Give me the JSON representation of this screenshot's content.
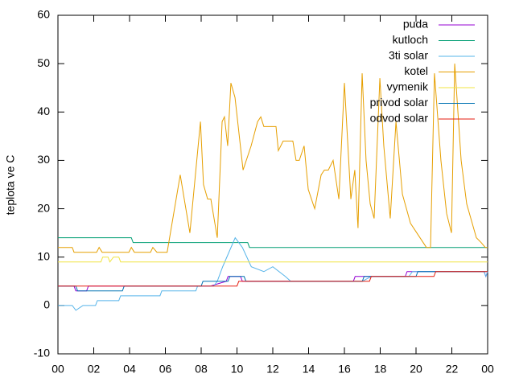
{
  "chart_data": {
    "type": "line",
    "ylabel": "teplota ve C",
    "xlim": [
      0,
      24
    ],
    "ylim": [
      -10,
      60
    ],
    "xticks": [
      {
        "value": 0,
        "label": "00"
      },
      {
        "value": 2,
        "label": "02"
      },
      {
        "value": 4,
        "label": "04"
      },
      {
        "value": 6,
        "label": "06"
      },
      {
        "value": 8,
        "label": "08"
      },
      10,
      12,
      14,
      16,
      18,
      20,
      22,
      {
        "value": 24,
        "label": "00"
      }
    ],
    "yticks": [
      -10,
      0,
      10,
      20,
      30,
      40,
      50,
      60
    ],
    "legend": "top-right",
    "series": [
      {
        "name": "puda",
        "color": "#9400d3",
        "x": [
          0,
          0.9,
          1.0,
          1.6,
          1.7,
          3.5,
          3.6,
          8.4,
          8.5,
          9.4,
          9.5,
          10.2,
          10.3,
          16.5,
          16.6,
          18.5,
          18.6,
          19.4,
          19.5,
          23.8,
          23.9,
          24
        ],
        "values": [
          4,
          4,
          3,
          3,
          4,
          4,
          4,
          4,
          4,
          5,
          6,
          6,
          5,
          5,
          6,
          6,
          6,
          6,
          7,
          7,
          6,
          7
        ]
      },
      {
        "name": "kutloch",
        "color": "#009e73",
        "x": [
          0,
          4.1,
          4.2,
          10.6,
          10.7,
          24
        ],
        "values": [
          14,
          14,
          13,
          13,
          12,
          12
        ]
      },
      {
        "name": "3ti solar",
        "color": "#56b4e9",
        "x": [
          0,
          0.8,
          1.0,
          1.4,
          2.1,
          2.2,
          3.4,
          3.5,
          5.7,
          5.8,
          7.7,
          7.8,
          8.7,
          8.9,
          9.2,
          9.9,
          10.3,
          10.8,
          11.5,
          12.0,
          12.7,
          13.0,
          17.0,
          17.5,
          19.6,
          19.8,
          23.8,
          23.9,
          24
        ],
        "values": [
          0,
          0,
          -1,
          0,
          0,
          1,
          1,
          2,
          2,
          3,
          3,
          4,
          4,
          5,
          8,
          14,
          12,
          8,
          7,
          8,
          6,
          5,
          5,
          6,
          6,
          7,
          7,
          6,
          7
        ]
      },
      {
        "name": "kotel",
        "color": "#e69f00",
        "x": [
          0,
          0.8,
          0.9,
          2.16,
          2.3,
          2.47,
          3.96,
          4.1,
          4.27,
          5.17,
          5.3,
          5.53,
          6.1,
          6.83,
          7.37,
          7.96,
          8.13,
          8.36,
          8.54,
          8.9,
          9.17,
          9.3,
          9.48,
          9.66,
          9.89,
          10.34,
          10.79,
          11.15,
          11.33,
          11.5,
          12.18,
          12.31,
          12.58,
          13.12,
          13.3,
          13.48,
          13.75,
          13.98,
          14.34,
          14.7,
          14.88,
          15.1,
          15.37,
          15.69,
          16.0,
          16.36,
          16.58,
          16.76,
          16.99,
          17.21,
          17.44,
          17.66,
          17.98,
          18.2,
          18.56,
          18.88,
          19.24,
          19.69,
          20.58,
          20.81,
          21.03,
          21.39,
          21.71,
          21.98,
          22.16,
          22.52,
          22.83,
          23.37,
          23.64,
          23.87,
          24
        ],
        "values": [
          12,
          12,
          11,
          11,
          12,
          11,
          11,
          12,
          11,
          11,
          12,
          11,
          11,
          27,
          15,
          38,
          25,
          22,
          22,
          14,
          38,
          39,
          33,
          46,
          43,
          28,
          33,
          38,
          39,
          37,
          37,
          32,
          34,
          34,
          30,
          30,
          33,
          24,
          20,
          27,
          28,
          28,
          30,
          22,
          46,
          22,
          28,
          16,
          48,
          30,
          21,
          18,
          47,
          33,
          18,
          38,
          23,
          17,
          12,
          12,
          48,
          30,
          19,
          15,
          50,
          30,
          21,
          14,
          13,
          12,
          12
        ]
      },
      {
        "name": "vymenik",
        "color": "#f0e442",
        "x": [
          0,
          2.4,
          2.5,
          2.8,
          2.9,
          3.1,
          3.4,
          3.5,
          24
        ],
        "values": [
          9,
          9,
          10,
          10,
          9,
          10,
          10,
          9,
          9
        ]
      },
      {
        "name": "privod solar",
        "color": "#0072b2",
        "x": [
          0,
          1.0,
          1.1,
          3.6,
          3.7,
          8.0,
          8.1,
          9.5,
          9.6,
          10.4,
          10.5,
          17.0,
          17.1,
          20.0,
          20.1,
          24
        ],
        "values": [
          4,
          4,
          3,
          3,
          4,
          4,
          5,
          5,
          6,
          6,
          5,
          5,
          6,
          6,
          7,
          7
        ]
      },
      {
        "name": "odvod solar",
        "color": "#e51e10",
        "x": [
          0,
          10.0,
          10.1,
          17.4,
          17.5,
          21.0,
          21.1,
          24
        ],
        "values": [
          4,
          4,
          5,
          5,
          6,
          6,
          7,
          7
        ]
      }
    ]
  }
}
